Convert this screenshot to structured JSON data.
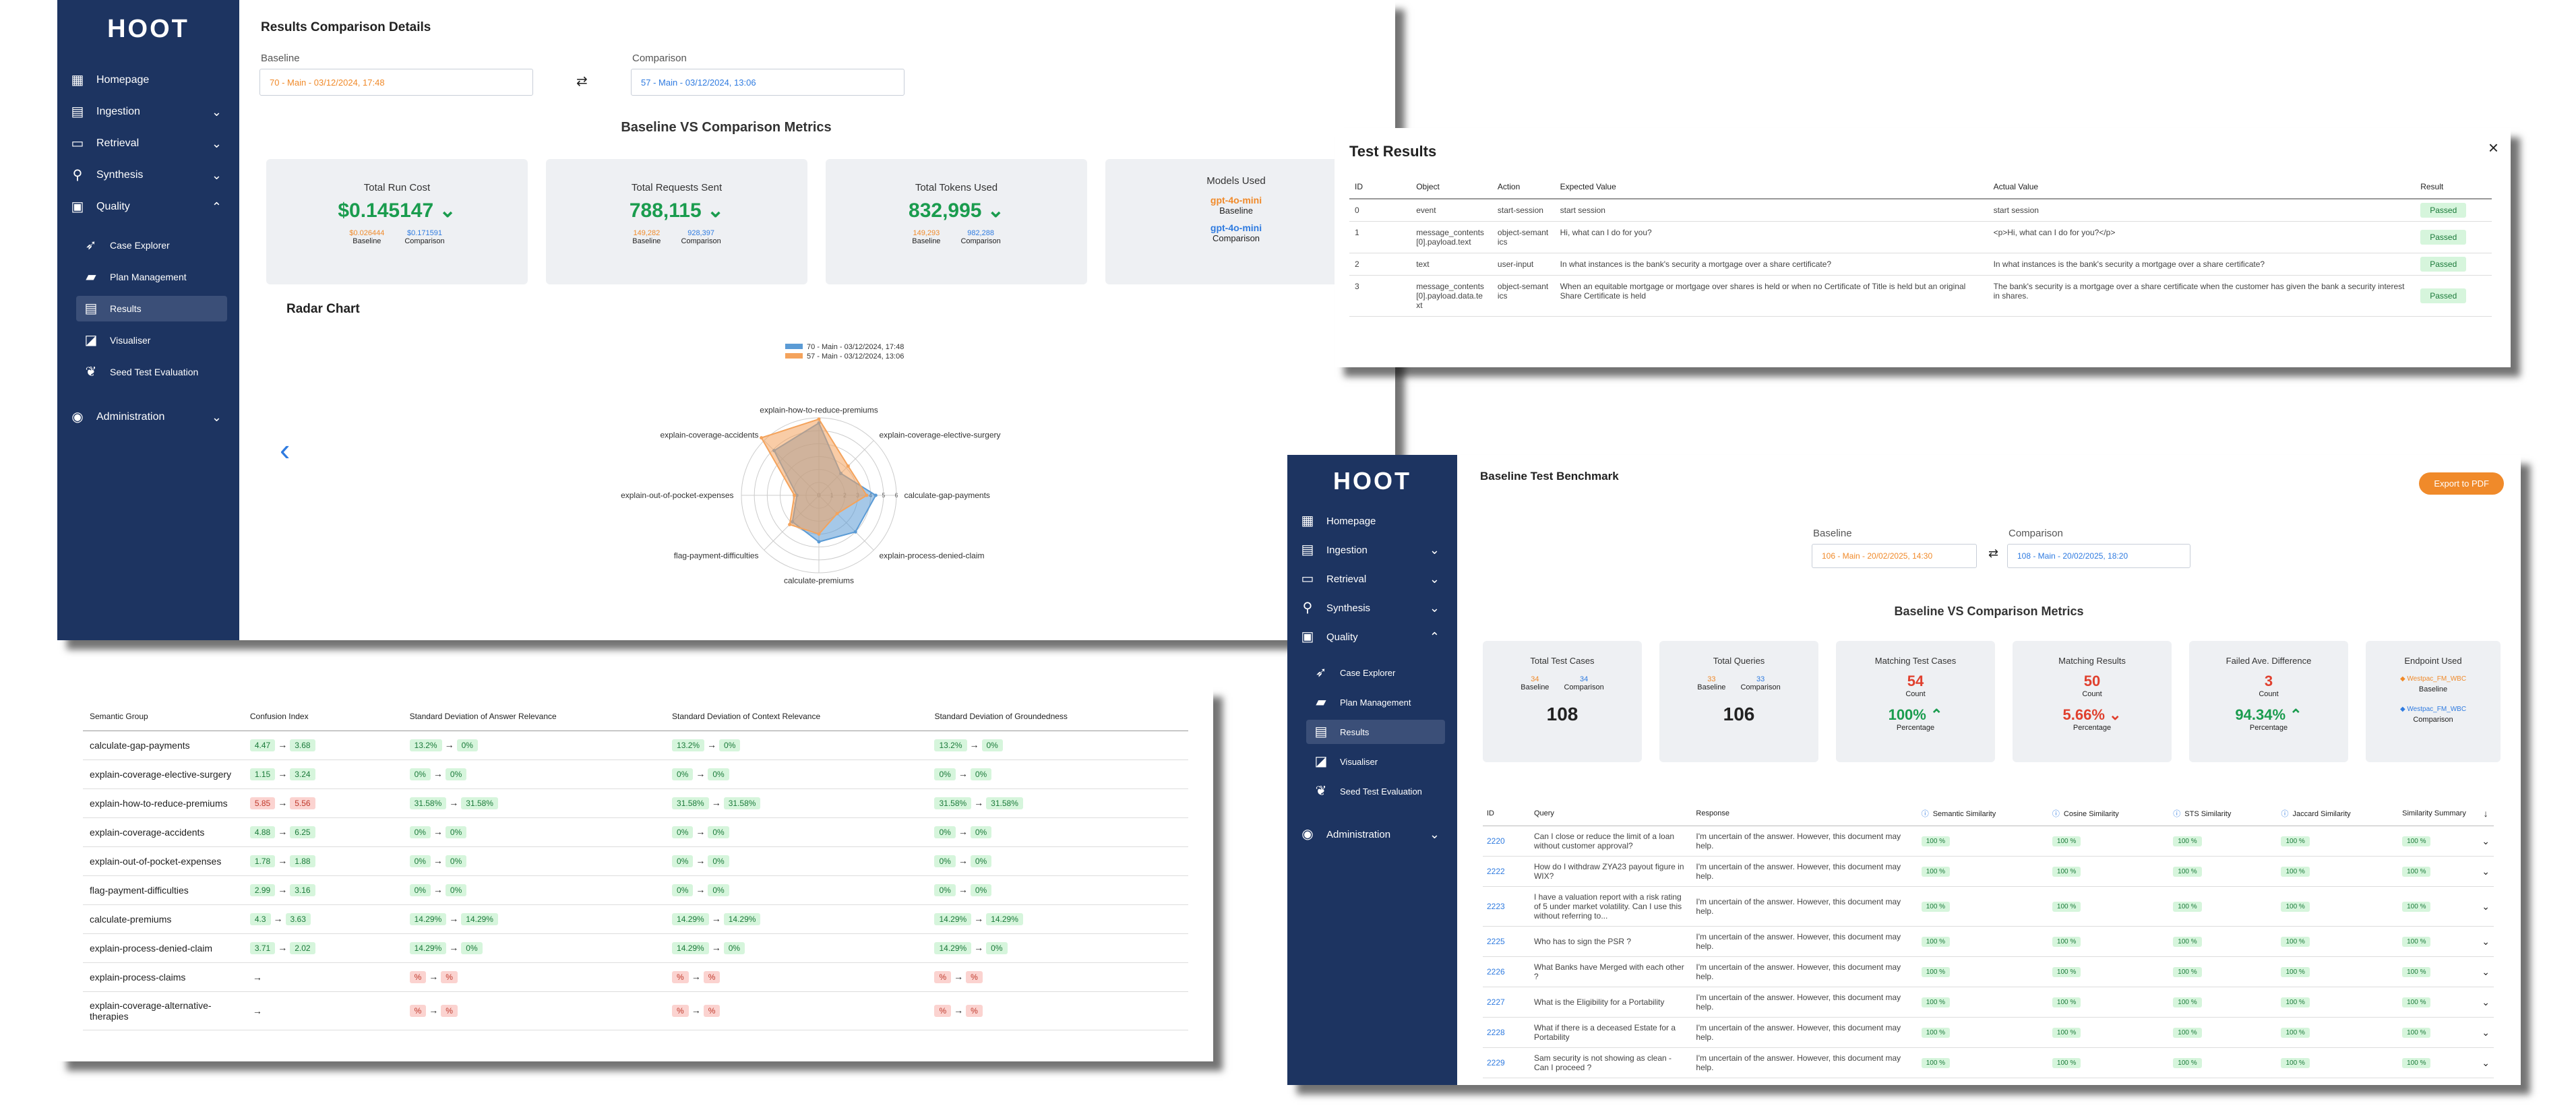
{
  "app_brand": "HOOT",
  "sidebar_nav": [
    {
      "label": "Homepage",
      "icon": "grid-icon",
      "expandable": false
    },
    {
      "label": "Ingestion",
      "icon": "book-icon",
      "expandable": true
    },
    {
      "label": "Retrieval",
      "icon": "inbox-icon",
      "expandable": true
    },
    {
      "label": "Synthesis",
      "icon": "bulb-icon",
      "expandable": true
    },
    {
      "label": "Quality",
      "icon": "chat-icon",
      "expandable": true,
      "expanded": true
    }
  ],
  "sidebar_quality_sub": [
    {
      "label": "Case Explorer",
      "icon": "rocket-icon"
    },
    {
      "label": "Plan Management",
      "icon": "folder-icon"
    },
    {
      "label": "Results",
      "icon": "box-icon",
      "active": true
    },
    {
      "label": "Visualiser",
      "icon": "chart-icon"
    },
    {
      "label": "Seed Test Evaluation",
      "icon": "seed-icon"
    }
  ],
  "sidebar_admin": {
    "label": "Administration",
    "icon": "globe-icon"
  },
  "results_comparison": {
    "title": "Results Comparison Details",
    "baseline_label": "Baseline",
    "baseline_value": "70 - Main - 03/12/2024, 17:48",
    "comparison_label": "Comparison",
    "comparison_value": "57 - Main - 03/12/2024, 13:06",
    "metrics_title": "Baseline VS Comparison Metrics",
    "cards": [
      {
        "title": "Total Run Cost",
        "value": "$0.145147",
        "baseline": "$0.026444",
        "comparison": "$0.171591",
        "baseline_label": "Baseline",
        "comparison_label": "Comparison"
      },
      {
        "title": "Total Requests Sent",
        "value": "788,115",
        "baseline": "149,282",
        "comparison": "928,397",
        "baseline_label": "Baseline",
        "comparison_label": "Comparison"
      },
      {
        "title": "Total Tokens Used",
        "value": "832,995",
        "baseline": "149,293",
        "comparison": "982,288",
        "baseline_label": "Baseline",
        "comparison_label": "Comparison"
      }
    ],
    "models_card": {
      "title": "Models Used",
      "baseline_model": "gpt-4o-mini",
      "baseline_label": "Baseline",
      "comparison_model": "gpt-4o-mini",
      "comparison_label": "Comparison"
    },
    "radar_title": "Radar Chart"
  },
  "chart_data": {
    "type": "radar",
    "axes": [
      "explain-how-to-reduce-premiums",
      "explain-coverage-elective-surgery",
      "calculate-gap-payments",
      "explain-process-denied-claim",
      "calculate-premiums",
      "flag-payment-difficulties",
      "explain-out-of-pocket-expenses",
      "explain-coverage-accidents"
    ],
    "tick_labels": [
      "0",
      "1",
      "2",
      "3",
      "4",
      "5",
      "6"
    ],
    "range": [
      0,
      6
    ],
    "series": [
      {
        "name": "70 - Main - 03/12/2024, 17:48",
        "color": "#5b9bd5",
        "values": [
          5.6,
          2.4,
          4.4,
          4.0,
          3.6,
          2.9,
          1.7,
          4.9
        ]
      },
      {
        "name": "57 - Main - 03/12/2024, 13:06",
        "color": "#f4a35c",
        "values": [
          5.9,
          3.2,
          3.7,
          2.0,
          3.0,
          3.2,
          1.9,
          6.3
        ]
      }
    ]
  },
  "test_results": {
    "title": "Test Results",
    "columns": [
      "ID",
      "Object",
      "Action",
      "Expected Value",
      "Actual Value",
      "Result"
    ],
    "rows": [
      {
        "id": "0",
        "object": "event",
        "action": "start-session",
        "expected": "start session",
        "actual": "start session",
        "result": "Passed"
      },
      {
        "id": "1",
        "object": "message_contents[0].payload.text",
        "action": "object-semantics",
        "expected": "Hi, what can I do for you?",
        "actual": "<p>Hi, what can I do for you?</p>",
        "result": "Passed"
      },
      {
        "id": "2",
        "object": "text",
        "action": "user-input",
        "expected": "In what instances is the bank's security a mortgage over a share certificate?",
        "actual": "In what instances is the bank's security a mortgage over a share certificate?",
        "result": "Passed"
      },
      {
        "id": "3",
        "object": "message_contents[0].payload.data.text",
        "action": "object-semantics",
        "expected": "When an equitable mortgage or mortgage over shares is held or when no Certificate of Title is held but an original Share Certificate is held",
        "actual": "The bank's security is a mortgage over a share certificate when the customer has given the bank a security interest in shares.",
        "result": "Passed"
      }
    ]
  },
  "semantic_table": {
    "columns": [
      "Semantic Group",
      "Confusion Index",
      "Standard Deviation of Answer Relevance",
      "Standard Deviation of Context Relevance",
      "Standard Deviation of Groundedness"
    ],
    "rows": [
      {
        "group": "calculate-gap-payments",
        "ci": [
          "4.47",
          "3.68"
        ],
        "ci_tone": "g",
        "ar": [
          "13.2%",
          "0%"
        ],
        "cr": [
          "13.2%",
          "0%"
        ],
        "gr": [
          "13.2%",
          "0%"
        ]
      },
      {
        "group": "explain-coverage-elective-surgery",
        "ci": [
          "1.15",
          "3.24"
        ],
        "ci_tone": "g",
        "ar": [
          "0%",
          "0%"
        ],
        "cr": [
          "0%",
          "0%"
        ],
        "gr": [
          "0%",
          "0%"
        ]
      },
      {
        "group": "explain-how-to-reduce-premiums",
        "ci": [
          "5.85",
          "5.56"
        ],
        "ci_tone": "r",
        "ar": [
          "31.58%",
          "31.58%"
        ],
        "cr": [
          "31.58%",
          "31.58%"
        ],
        "gr": [
          "31.58%",
          "31.58%"
        ]
      },
      {
        "group": "explain-coverage-accidents",
        "ci": [
          "4.88",
          "6.25"
        ],
        "ci_tone": "g",
        "ar": [
          "0%",
          "0%"
        ],
        "cr": [
          "0%",
          "0%"
        ],
        "gr": [
          "0%",
          "0%"
        ]
      },
      {
        "group": "explain-out-of-pocket-expenses",
        "ci": [
          "1.78",
          "1.88"
        ],
        "ci_tone": "g",
        "ar": [
          "0%",
          "0%"
        ],
        "cr": [
          "0%",
          "0%"
        ],
        "gr": [
          "0%",
          "0%"
        ]
      },
      {
        "group": "flag-payment-difficulties",
        "ci": [
          "2.99",
          "3.16"
        ],
        "ci_tone": "g",
        "ar": [
          "0%",
          "0%"
        ],
        "cr": [
          "0%",
          "0%"
        ],
        "gr": [
          "0%",
          "0%"
        ]
      },
      {
        "group": "calculate-premiums",
        "ci": [
          "4.3",
          "3.63"
        ],
        "ci_tone": "g",
        "ar": [
          "14.29%",
          "14.29%"
        ],
        "cr": [
          "14.29%",
          "14.29%"
        ],
        "gr": [
          "14.29%",
          "14.29%"
        ]
      },
      {
        "group": "explain-process-denied-claim",
        "ci": [
          "3.71",
          "2.02"
        ],
        "ci_tone": "g",
        "ar": [
          "14.29%",
          "0%"
        ],
        "cr": [
          "14.29%",
          "0%"
        ],
        "gr": [
          "14.29%",
          "0%"
        ]
      },
      {
        "group": "explain-process-claims",
        "ci": [
          "",
          ""
        ],
        "ci_tone": "n",
        "ar": [
          "%",
          "%"
        ],
        "cr": [
          "%",
          "%"
        ],
        "gr": [
          "%",
          "%"
        ],
        "tone": "r"
      },
      {
        "group": "explain-coverage-alternative-therapies",
        "ci": [
          "",
          ""
        ],
        "ci_tone": "n",
        "ar": [
          "%",
          "%"
        ],
        "cr": [
          "%",
          "%"
        ],
        "gr": [
          "%",
          "%"
        ],
        "tone": "r"
      }
    ]
  },
  "benchmark": {
    "title": "Baseline Test Benchmark",
    "export_label": "Export to PDF",
    "baseline_label": "Baseline",
    "baseline_value": "106 - Main - 20/02/2025, 14:30",
    "comparison_label": "Comparison",
    "comparison_value": "108 - Main - 20/02/2025, 18:20",
    "metrics_title": "Baseline VS Comparison Metrics",
    "cards": [
      {
        "title": "Total Test Cases",
        "baseline": "34",
        "comparison": "34",
        "baseline_label": "Baseline",
        "comparison_label": "Comparison",
        "value": "108"
      },
      {
        "title": "Total Queries",
        "baseline": "33",
        "comparison": "33",
        "baseline_label": "Baseline",
        "comparison_label": "Comparison",
        "value": "106"
      },
      {
        "title": "Matching Test Cases",
        "count": "54",
        "count_label": "Count",
        "pct": "100%",
        "pct_label": "Percentage",
        "tone": "g"
      },
      {
        "title": "Matching Results",
        "count": "50",
        "count_label": "Count",
        "pct": "5.66%",
        "pct_label": "Percentage",
        "tone": "r"
      },
      {
        "title": "Failed Ave. Difference",
        "count": "3",
        "count_label": "Count",
        "pct": "94.34%",
        "pct_label": "Percentage",
        "tone": "g"
      }
    ],
    "endpoint_card": {
      "title": "Endpoint Used",
      "baseline_ep": "Westpac_FM_WBC",
      "baseline_label": "Baseline",
      "comparison_ep": "Westpac_FM_WBC",
      "comparison_label": "Comparison"
    },
    "columns": [
      "ID",
      "Query",
      "Response",
      "Semantic Similarity",
      "Cosine Similarity",
      "STS Similarity",
      "Jaccard Similarity",
      "Similarity Summary"
    ],
    "rows": [
      {
        "id": "2220",
        "query": "Can I close or reduce the limit of a loan without customer approval?",
        "response": "I'm uncertain of the answer. However, this document may help."
      },
      {
        "id": "2222",
        "query": "How do I withdraw ZYA23 payout figure in WIX?",
        "response": "I'm uncertain of the answer. However, this document may help."
      },
      {
        "id": "2223",
        "query": "I have a valuation report with a risk rating of 5 under market volatility. Can I use this without referring to...",
        "response": "I'm uncertain of the answer. However, this document may help."
      },
      {
        "id": "2225",
        "query": "Who has to sign the PSR ?",
        "response": "I'm uncertain of the answer. However, this document may help."
      },
      {
        "id": "2226",
        "query": "What Banks have Merged with each other ?",
        "response": "I'm uncertain of the answer. However, this document may help."
      },
      {
        "id": "2227",
        "query": "What is the Eligibility for a Portability",
        "response": "I'm uncertain of the answer. However, this document may help."
      },
      {
        "id": "2228",
        "query": "What if there is a deceased Estate for a Portability",
        "response": "I'm uncertain of the answer. However, this document may help."
      },
      {
        "id": "2229",
        "query": "Sam security is not showing as clean - Can I proceed ?",
        "response": "I'm uncertain of the answer. However, this document may help."
      }
    ],
    "pct_value": "100 %"
  },
  "colors": {
    "sidebar": "#1d3461",
    "green": "#1a9c4e",
    "red": "#e0402e",
    "orange": "#f08a2a",
    "blue": "#2f7be0"
  }
}
